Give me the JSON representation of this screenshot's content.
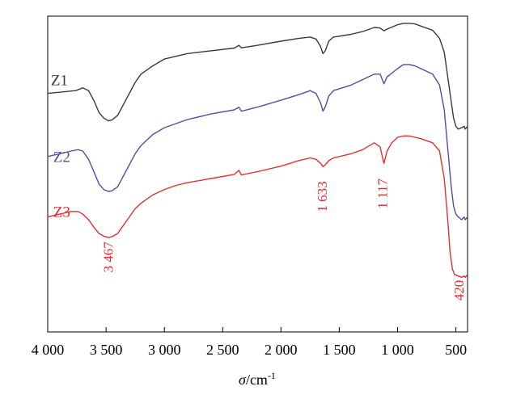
{
  "chart_data": {
    "type": "line",
    "title": "",
    "xlabel_symbol": "σ",
    "xlabel_unit": "/cm",
    "xlabel_sup": "-1",
    "ylabel": "",
    "xlim": [
      4000,
      400
    ],
    "x_reversed": true,
    "y_ticks_shown": false,
    "ylim": [
      0,
      100
    ],
    "grid": false,
    "x_ticks": [
      {
        "value": 4000,
        "label": "4 000"
      },
      {
        "value": 3500,
        "label": "3 500"
      },
      {
        "value": 3000,
        "label": "3 000"
      },
      {
        "value": 2500,
        "label": "2 500"
      },
      {
        "value": 2000,
        "label": "2 000"
      },
      {
        "value": 1500,
        "label": "1 500"
      },
      {
        "value": 1000,
        "label": "1 000"
      },
      {
        "value": 500,
        "label": "500"
      }
    ],
    "series": [
      {
        "name": "Z1",
        "color": "#3a3a3a",
        "label_at": [
          3900,
          79
        ],
        "points": [
          [
            4000,
            76
          ],
          [
            3880,
            76.5
          ],
          [
            3760,
            77
          ],
          [
            3700,
            78
          ],
          [
            3650,
            77
          ],
          [
            3600,
            73
          ],
          [
            3560,
            69
          ],
          [
            3520,
            67
          ],
          [
            3480,
            66
          ],
          [
            3450,
            66.3
          ],
          [
            3400,
            68
          ],
          [
            3350,
            72
          ],
          [
            3300,
            76
          ],
          [
            3250,
            80
          ],
          [
            3200,
            83
          ],
          [
            3100,
            86
          ],
          [
            3000,
            88.5
          ],
          [
            2900,
            89.5
          ],
          [
            2800,
            90.5
          ],
          [
            2600,
            91.5
          ],
          [
            2400,
            92.5
          ],
          [
            2360,
            93.5
          ],
          [
            2340,
            92.6
          ],
          [
            2200,
            93.5
          ],
          [
            2000,
            95
          ],
          [
            1850,
            96
          ],
          [
            1750,
            96.5
          ],
          [
            1700,
            95.8
          ],
          [
            1660,
            93
          ],
          [
            1640,
            90.5
          ],
          [
            1620,
            91.5
          ],
          [
            1590,
            95
          ],
          [
            1550,
            96.5
          ],
          [
            1400,
            97.5
          ],
          [
            1300,
            98.5
          ],
          [
            1200,
            100
          ],
          [
            1150,
            99.8
          ],
          [
            1117,
            98.8
          ],
          [
            1080,
            99.6
          ],
          [
            1000,
            101
          ],
          [
            950,
            101.5
          ],
          [
            900,
            101.5
          ],
          [
            850,
            101.3
          ],
          [
            800,
            100.5
          ],
          [
            700,
            99
          ],
          [
            640,
            96
          ],
          [
            600,
            91
          ],
          [
            570,
            82
          ],
          [
            540,
            73
          ],
          [
            520,
            67
          ],
          [
            500,
            64
          ],
          [
            480,
            63
          ],
          [
            450,
            63.5
          ],
          [
            430,
            64
          ],
          [
            420,
            63
          ],
          [
            400,
            64
          ]
        ]
      },
      {
        "name": "Z2",
        "color": "#5a4aa6",
        "label_at": [
          3880,
          51
        ],
        "points": [
          [
            4000,
            53
          ],
          [
            3900,
            54
          ],
          [
            3800,
            55
          ],
          [
            3740,
            55.5
          ],
          [
            3700,
            55
          ],
          [
            3650,
            52
          ],
          [
            3600,
            47
          ],
          [
            3560,
            43
          ],
          [
            3520,
            41
          ],
          [
            3480,
            40.3
          ],
          [
            3450,
            40.5
          ],
          [
            3400,
            42
          ],
          [
            3350,
            46
          ],
          [
            3300,
            50
          ],
          [
            3250,
            54
          ],
          [
            3200,
            57
          ],
          [
            3100,
            61
          ],
          [
            3000,
            63.5
          ],
          [
            2900,
            65
          ],
          [
            2800,
            66.5
          ],
          [
            2600,
            68.5
          ],
          [
            2400,
            70
          ],
          [
            2360,
            71
          ],
          [
            2340,
            69.5
          ],
          [
            2200,
            71
          ],
          [
            2000,
            73.5
          ],
          [
            1850,
            75.5
          ],
          [
            1750,
            77
          ],
          [
            1700,
            76
          ],
          [
            1660,
            72.5
          ],
          [
            1640,
            69.5
          ],
          [
            1620,
            71
          ],
          [
            1590,
            75
          ],
          [
            1550,
            77
          ],
          [
            1400,
            79
          ],
          [
            1300,
            81
          ],
          [
            1200,
            83
          ],
          [
            1150,
            83
          ],
          [
            1117,
            79.5
          ],
          [
            1090,
            82
          ],
          [
            1000,
            85
          ],
          [
            950,
            86.5
          ],
          [
            900,
            86.5
          ],
          [
            850,
            86
          ],
          [
            800,
            85
          ],
          [
            700,
            83
          ],
          [
            640,
            79
          ],
          [
            600,
            70
          ],
          [
            570,
            56
          ],
          [
            540,
            42
          ],
          [
            520,
            35
          ],
          [
            500,
            32
          ],
          [
            480,
            31
          ],
          [
            450,
            30
          ],
          [
            430,
            31
          ],
          [
            420,
            30
          ],
          [
            400,
            31
          ]
        ]
      },
      {
        "name": "Z3",
        "color": "#e03030",
        "label_at": [
          3880,
          31
        ],
        "points": [
          [
            4000,
            31
          ],
          [
            3900,
            32
          ],
          [
            3800,
            33
          ],
          [
            3740,
            33
          ],
          [
            3700,
            32
          ],
          [
            3650,
            30
          ],
          [
            3600,
            27
          ],
          [
            3560,
            25
          ],
          [
            3520,
            24
          ],
          [
            3480,
            23.5
          ],
          [
            3450,
            23.8
          ],
          [
            3400,
            25
          ],
          [
            3350,
            28
          ],
          [
            3300,
            31
          ],
          [
            3250,
            34
          ],
          [
            3200,
            36
          ],
          [
            3100,
            39
          ],
          [
            3000,
            41
          ],
          [
            2900,
            42.5
          ],
          [
            2800,
            43.5
          ],
          [
            2600,
            45
          ],
          [
            2400,
            46.5
          ],
          [
            2360,
            48
          ],
          [
            2340,
            46.3
          ],
          [
            2200,
            47.5
          ],
          [
            2000,
            49.5
          ],
          [
            1850,
            51.5
          ],
          [
            1750,
            52.5
          ],
          [
            1700,
            52
          ],
          [
            1660,
            50.5
          ],
          [
            1640,
            49.3
          ],
          [
            1620,
            50
          ],
          [
            1590,
            51.5
          ],
          [
            1550,
            52.5
          ],
          [
            1400,
            54
          ],
          [
            1300,
            55.5
          ],
          [
            1200,
            58
          ],
          [
            1150,
            56.5
          ],
          [
            1117,
            50.5
          ],
          [
            1090,
            55
          ],
          [
            1050,
            58
          ],
          [
            1000,
            60
          ],
          [
            950,
            60.5
          ],
          [
            900,
            60.5
          ],
          [
            850,
            60
          ],
          [
            800,
            59.5
          ],
          [
            700,
            58
          ],
          [
            640,
            55
          ],
          [
            600,
            45
          ],
          [
            570,
            30
          ],
          [
            550,
            18
          ],
          [
            530,
            12
          ],
          [
            510,
            10
          ],
          [
            480,
            9.5
          ],
          [
            450,
            9
          ],
          [
            430,
            9.5
          ],
          [
            420,
            9
          ],
          [
            400,
            10
          ]
        ]
      }
    ],
    "annotations": [
      {
        "label": "3 467",
        "x": 3467,
        "y": 22,
        "color": "#e03030",
        "rotate": -90,
        "anchor": "end"
      },
      {
        "label": "1 633",
        "x": 1633,
        "y": 44,
        "color": "#e03030",
        "rotate": -90,
        "anchor": "end"
      },
      {
        "label": "1 117",
        "x": 1117,
        "y": 45,
        "color": "#e03030",
        "rotate": -90,
        "anchor": "end"
      },
      {
        "label": "420",
        "x": 460,
        "y": 8,
        "color": "#e03030",
        "rotate": -90,
        "anchor": "end"
      }
    ]
  }
}
